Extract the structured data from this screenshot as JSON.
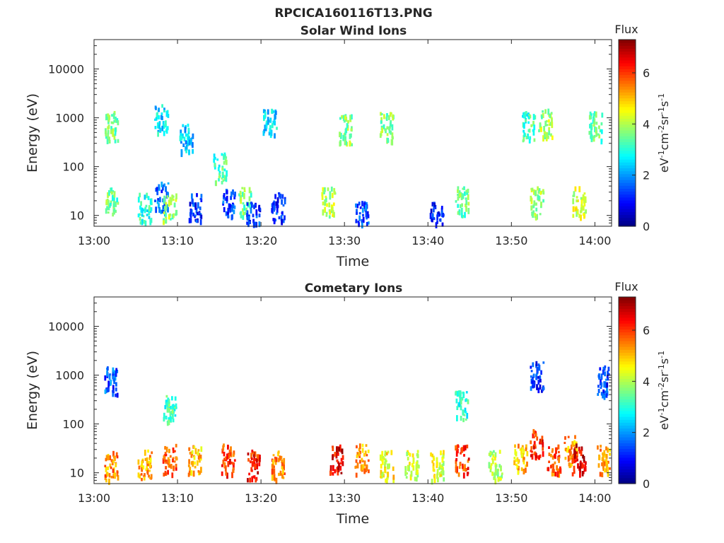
{
  "figure_title": "RPCICA160116T13.PNG",
  "colormap": "jet",
  "colors": {
    "axis": "#262626",
    "background": "#ffffff",
    "plot_background": "#ffffff"
  },
  "chart_data": [
    {
      "type": "heatmap",
      "title": "Solar Wind Ions",
      "xlabel": "Time",
      "ylabel": "Energy (eV)",
      "yscale": "log",
      "xlim": [
        "13:00",
        "14:02"
      ],
      "ylim": [
        6,
        40000
      ],
      "x_ticks": [
        "13:00",
        "13:10",
        "13:20",
        "13:30",
        "13:40",
        "13:50",
        "14:00"
      ],
      "y_ticks": [
        "10",
        "100",
        "1000",
        "10000"
      ],
      "colorbar": {
        "title": "Flux",
        "label": "eV-1cm-2sr-1s-1",
        "range": [
          0,
          7.3
        ],
        "ticks": [
          "0",
          "2",
          "4",
          "6"
        ]
      },
      "clusters": [
        {
          "t": "13:02",
          "e": "20",
          "f": 3.5
        },
        {
          "t": "13:02",
          "e": "700",
          "f": 3.6
        },
        {
          "t": "13:06",
          "e": "15",
          "f": 3.0
        },
        {
          "t": "13:08",
          "e": "25",
          "f": 1.6
        },
        {
          "t": "13:08",
          "e": "1000",
          "f": 2.6
        },
        {
          "t": "13:09",
          "e": "15",
          "f": 3.8
        },
        {
          "t": "13:11",
          "e": "400",
          "f": 2.4
        },
        {
          "t": "13:12",
          "e": "15",
          "f": 1.2
        },
        {
          "t": "13:15",
          "e": "100",
          "f": 3.2
        },
        {
          "t": "13:16",
          "e": "20",
          "f": 1.3
        },
        {
          "t": "13:18",
          "e": "20",
          "f": 3.6
        },
        {
          "t": "13:19",
          "e": "10",
          "f": 1.2
        },
        {
          "t": "13:21",
          "e": "900",
          "f": 2.5
        },
        {
          "t": "13:22",
          "e": "15",
          "f": 1.2
        },
        {
          "t": "13:28",
          "e": "20",
          "f": 4.0
        },
        {
          "t": "13:30",
          "e": "600",
          "f": 3.7
        },
        {
          "t": "13:32",
          "e": "10",
          "f": 1.4
        },
        {
          "t": "13:35",
          "e": "700",
          "f": 3.6
        },
        {
          "t": "13:41",
          "e": "10",
          "f": 1.2
        },
        {
          "t": "13:44",
          "e": "20",
          "f": 3.5
        },
        {
          "t": "13:52",
          "e": "700",
          "f": 3.2
        },
        {
          "t": "13:53",
          "e": "20",
          "f": 3.8
        },
        {
          "t": "13:54",
          "e": "800",
          "f": 3.9
        },
        {
          "t": "13:58",
          "e": "20",
          "f": 4.2
        },
        {
          "t": "14:00",
          "e": "700",
          "f": 3.4
        }
      ]
    },
    {
      "type": "heatmap",
      "title": "Cometary Ions",
      "xlabel": "Time",
      "ylabel": "Energy (eV)",
      "yscale": "log",
      "xlim": [
        "13:00",
        "14:02"
      ],
      "ylim": [
        6,
        40000
      ],
      "x_ticks": [
        "13:00",
        "13:10",
        "13:20",
        "13:30",
        "13:40",
        "13:50",
        "14:00"
      ],
      "y_ticks": [
        "10",
        "100",
        "1000",
        "10000"
      ],
      "colorbar": {
        "title": "Flux",
        "label": "eV-1cm-2sr-1s-1",
        "range": [
          0,
          7.3
        ],
        "ticks": [
          "0",
          "2",
          "4",
          "6"
        ]
      },
      "clusters": [
        {
          "t": "13:02",
          "e": "15",
          "f": 5.4
        },
        {
          "t": "13:02",
          "e": "800",
          "f": 1.5
        },
        {
          "t": "13:06",
          "e": "15",
          "f": 5.2
        },
        {
          "t": "13:09",
          "e": "20",
          "f": 5.8
        },
        {
          "t": "13:09",
          "e": "200",
          "f": 3.2
        },
        {
          "t": "13:12",
          "e": "20",
          "f": 5.0
        },
        {
          "t": "13:16",
          "e": "20",
          "f": 6.0
        },
        {
          "t": "13:19",
          "e": "15",
          "f": 6.3
        },
        {
          "t": "13:22",
          "e": "15",
          "f": 5.5
        },
        {
          "t": "13:29",
          "e": "20",
          "f": 6.5
        },
        {
          "t": "13:32",
          "e": "20",
          "f": 5.2
        },
        {
          "t": "13:35",
          "e": "15",
          "f": 4.6
        },
        {
          "t": "13:38",
          "e": "15",
          "f": 4.2
        },
        {
          "t": "13:41",
          "e": "15",
          "f": 4.3
        },
        {
          "t": "13:44",
          "e": "20",
          "f": 6.0
        },
        {
          "t": "13:44",
          "e": "250",
          "f": 3.0
        },
        {
          "t": "13:48",
          "e": "15",
          "f": 4.0
        },
        {
          "t": "13:51",
          "e": "20",
          "f": 5.0
        },
        {
          "t": "13:53",
          "e": "40",
          "f": 6.2
        },
        {
          "t": "13:53",
          "e": "1000",
          "f": 1.2
        },
        {
          "t": "13:55",
          "e": "20",
          "f": 5.8
        },
        {
          "t": "13:57",
          "e": "30",
          "f": 5.2
        },
        {
          "t": "13:58",
          "e": "20",
          "f": 6.6
        },
        {
          "t": "14:01",
          "e": "20",
          "f": 5.2
        },
        {
          "t": "14:01",
          "e": "800",
          "f": 1.3
        }
      ]
    }
  ]
}
